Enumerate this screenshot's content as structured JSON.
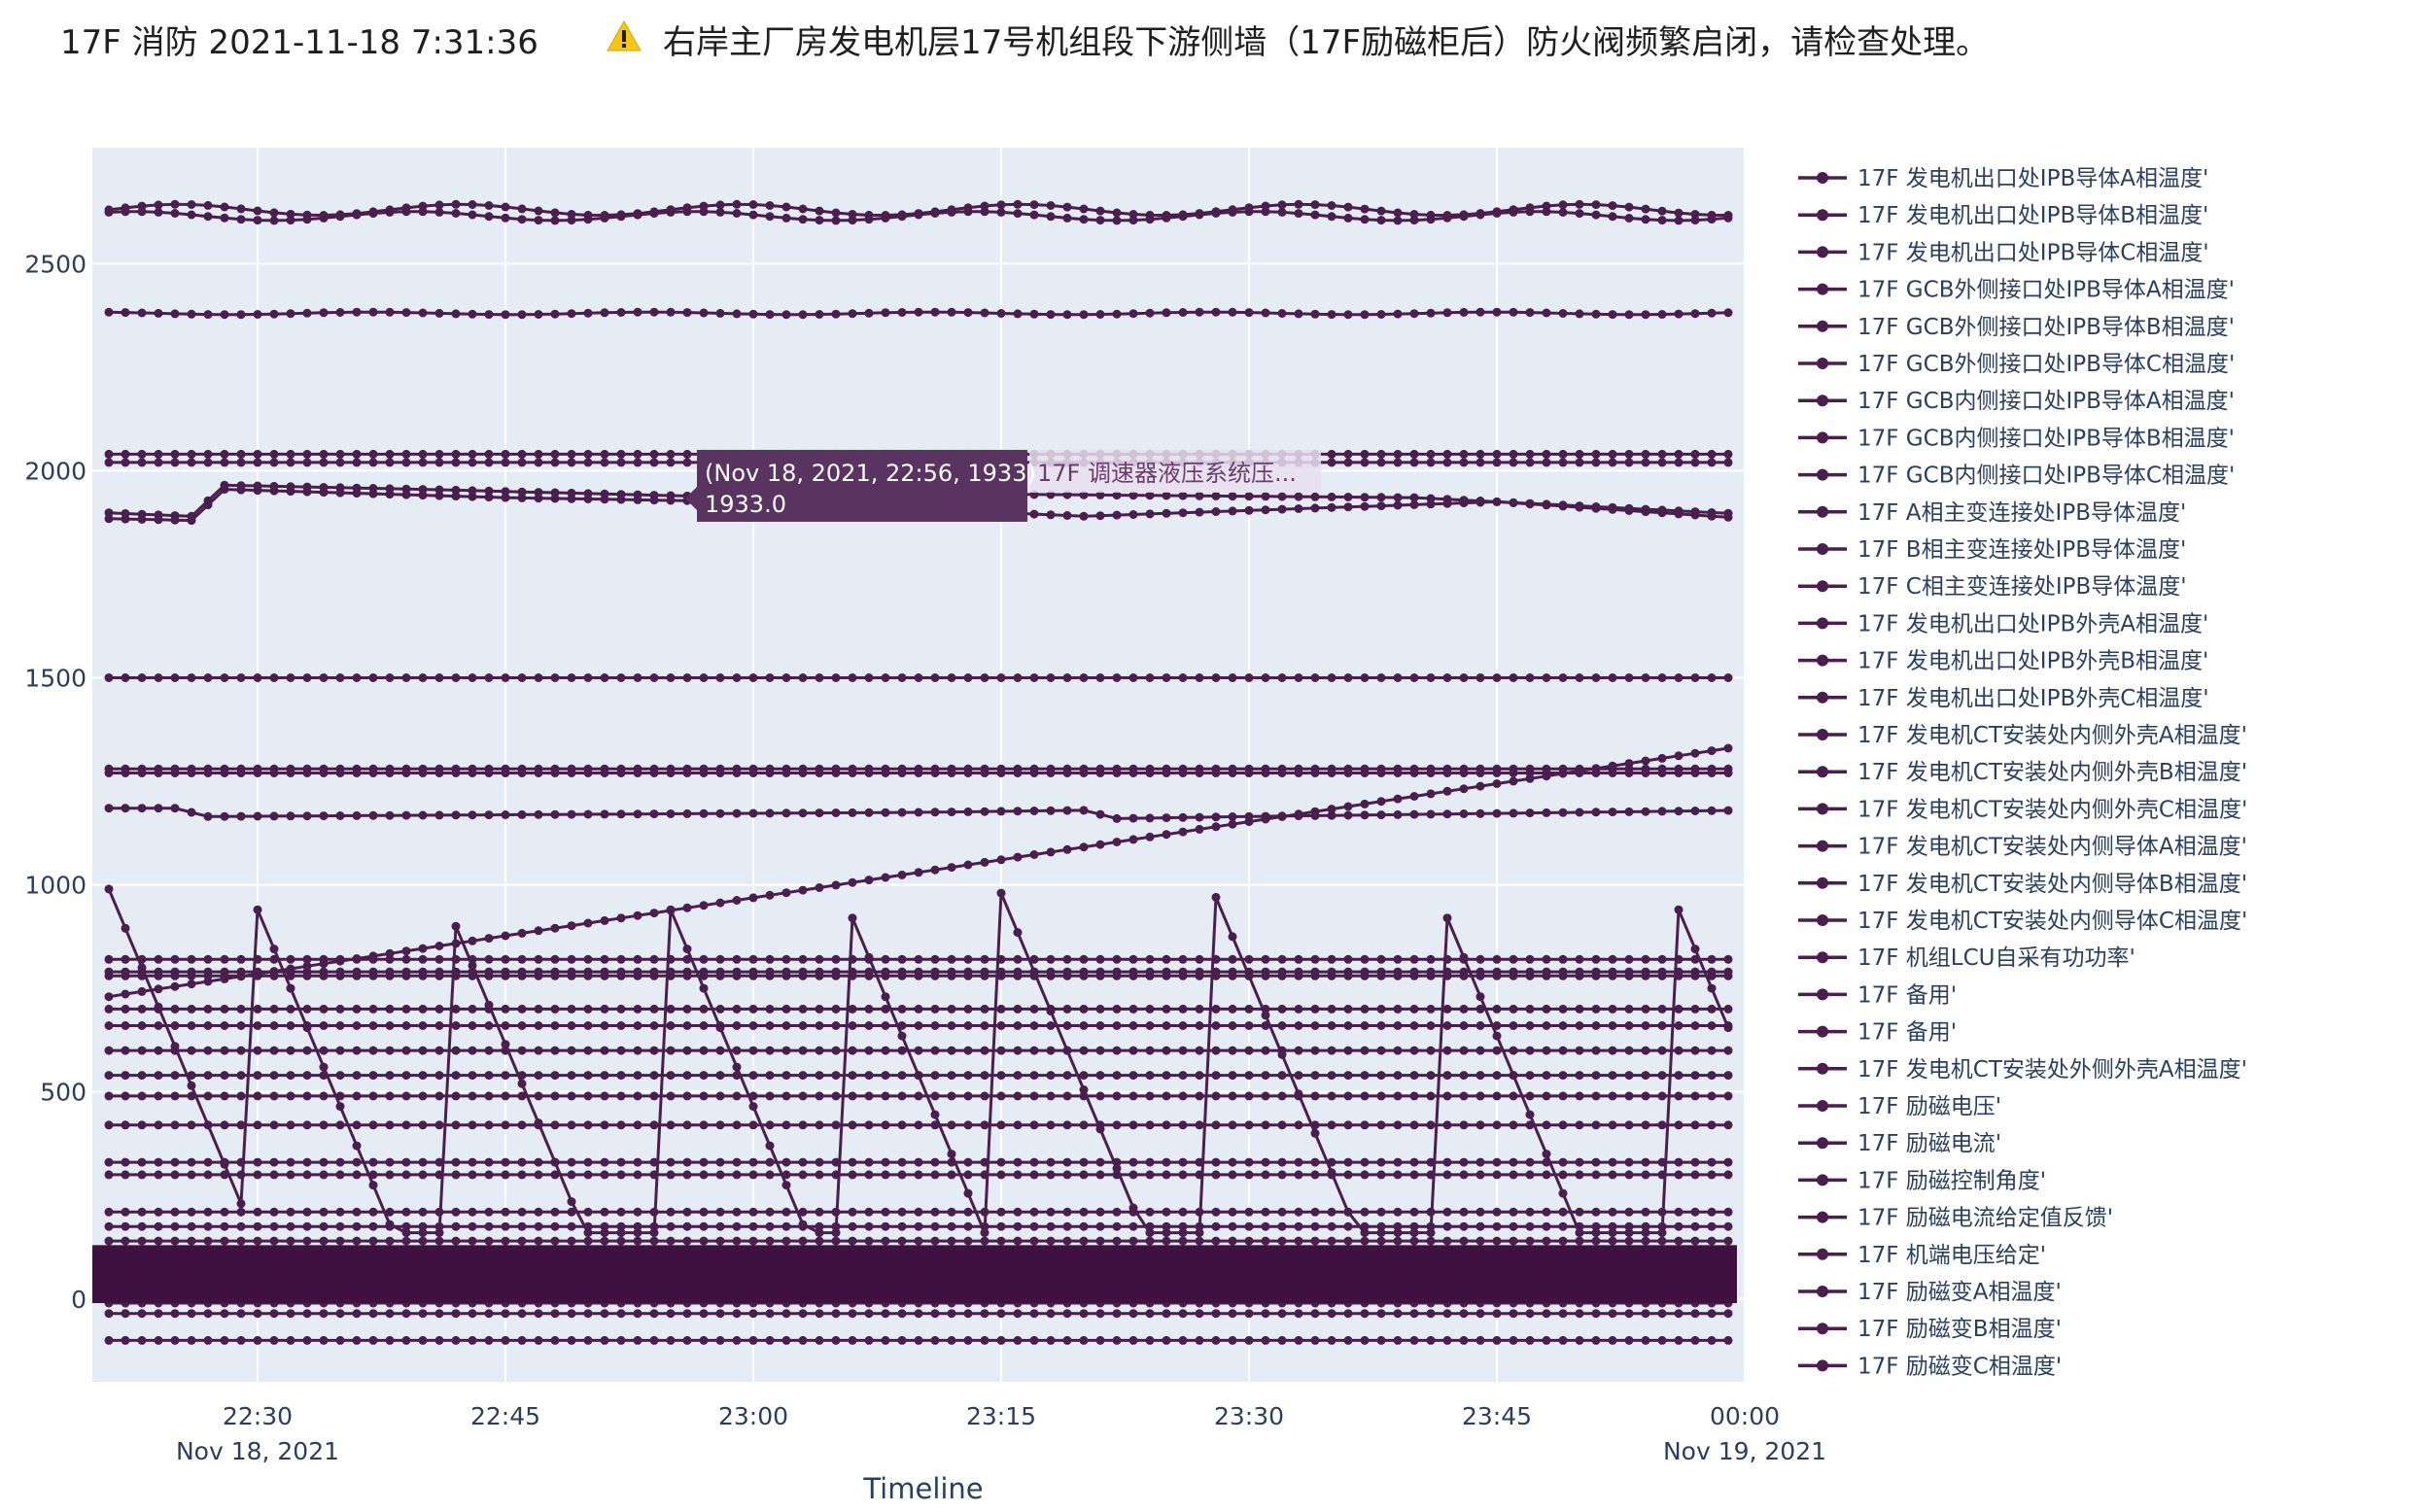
{
  "header": {
    "title": "17F 消防 2021-11-18 7:31:36",
    "warning_icon": "warning-triangle-icon",
    "message": "右岸主厂房发电机层17号机组段下游侧墙（17F励磁柜后）防火阀频繁启闭，请检查处理。"
  },
  "colors": {
    "plot_bg": "#e5ecf6",
    "grid": "#ffffff",
    "series": "#4a1f4e",
    "hover_box": "#5a3460",
    "warning": "#f5c518"
  },
  "chart_data": {
    "type": "line",
    "mode": "lines+markers",
    "xlabel": "Timeline",
    "ylabel": "",
    "xlim": [
      "2021-11-18 22:20",
      "2021-11-19 00:00"
    ],
    "ylim": [
      -200,
      2780
    ],
    "x_ticks": [
      {
        "value": "2021-11-18 22:30",
        "label": "22:30",
        "sublabel": "Nov 18, 2021"
      },
      {
        "value": "2021-11-18 22:45",
        "label": "22:45",
        "sublabel": ""
      },
      {
        "value": "2021-11-18 23:00",
        "label": "23:00",
        "sublabel": ""
      },
      {
        "value": "2021-11-18 23:15",
        "label": "23:15",
        "sublabel": ""
      },
      {
        "value": "2021-11-18 23:30",
        "label": "23:30",
        "sublabel": ""
      },
      {
        "value": "2021-11-18 23:45",
        "label": "23:45",
        "sublabel": ""
      },
      {
        "value": "2021-11-19 00:00",
        "label": "00:00",
        "sublabel": "Nov 19, 2021"
      }
    ],
    "y_ticks": [
      0,
      500,
      1000,
      1500,
      2000,
      2500
    ],
    "grid": true,
    "legend_position": "right",
    "legend": [
      "17F 发电机出口处IPB导体A相温度'",
      "17F 发电机出口处IPB导体B相温度'",
      "17F 发电机出口处IPB导体C相温度'",
      "17F GCB外侧接口处IPB导体A相温度'",
      "17F GCB外侧接口处IPB导体B相温度'",
      "17F GCB外侧接口处IPB导体C相温度'",
      "17F GCB内侧接口处IPB导体A相温度'",
      "17F GCB内侧接口处IPB导体B相温度'",
      "17F GCB内侧接口处IPB导体C相温度'",
      "17F A相主变连接处IPB导体温度'",
      "17F B相主变连接处IPB导体温度'",
      "17F C相主变连接处IPB导体温度'",
      "17F 发电机出口处IPB外壳A相温度'",
      "17F 发电机出口处IPB外壳B相温度'",
      "17F 发电机出口处IPB外壳C相温度'",
      "17F 发电机CT安装处内侧外壳A相温度'",
      "17F 发电机CT安装处内侧外壳B相温度'",
      "17F 发电机CT安装处内侧外壳C相温度'",
      "17F 发电机CT安装处内侧导体A相温度'",
      "17F 发电机CT安装处内侧导体B相温度'",
      "17F 发电机CT安装处内侧导体C相温度'",
      "17F 机组LCU自采有功功率'",
      "17F 备用'",
      "17F 备用'",
      "17F 发电机CT安装处外侧外壳A相温度'",
      "17F 励磁电压'",
      "17F 励磁电流'",
      "17F 励磁控制角度'",
      "17F 励磁电流给定值反馈'",
      "17F 机端电压给定'",
      "17F 励磁变A相温度'",
      "17F 励磁变B相温度'",
      "17F 励磁变C相温度'"
    ],
    "series": [
      {
        "kind": "flat",
        "value": 2630,
        "wobble": 22
      },
      {
        "kind": "flat",
        "value": 2615,
        "wobble": 18
      },
      {
        "kind": "flat",
        "value": 2380,
        "wobble": 5
      },
      {
        "kind": "flat",
        "value": 2040,
        "wobble": 0
      },
      {
        "kind": "flat",
        "value": 2020,
        "wobble": 0
      },
      {
        "kind": "step",
        "points": [
          [
            "2021-11-18 22:20",
            1900
          ],
          [
            "2021-11-18 22:26",
            1890
          ],
          [
            "2021-11-18 22:28",
            1965
          ],
          [
            "2021-11-18 22:40",
            1955
          ],
          [
            "2021-11-18 22:50",
            1945
          ],
          [
            "2021-11-18 23:00",
            1935
          ],
          [
            "2021-11-18 23:10",
            1945
          ],
          [
            "2021-11-18 23:40",
            1935
          ],
          [
            "2021-11-19 00:00",
            1895
          ]
        ]
      },
      {
        "kind": "step",
        "points": [
          [
            "2021-11-18 22:20",
            1885
          ],
          [
            "2021-11-18 22:26",
            1880
          ],
          [
            "2021-11-18 22:28",
            1955
          ],
          [
            "2021-11-18 22:45",
            1935
          ],
          [
            "2021-11-18 23:00",
            1925
          ],
          [
            "2021-11-18 23:20",
            1890
          ],
          [
            "2021-11-18 23:45",
            1925
          ],
          [
            "2021-11-19 00:00",
            1885
          ]
        ]
      },
      {
        "kind": "flat",
        "value": 1500,
        "wobble": 0
      },
      {
        "kind": "flat",
        "value": 1280,
        "wobble": 0
      },
      {
        "kind": "flat",
        "value": 1270,
        "wobble": 0
      },
      {
        "kind": "step",
        "points": [
          [
            "2021-11-18 22:20",
            1185
          ],
          [
            "2021-11-18 22:25",
            1185
          ],
          [
            "2021-11-18 22:27",
            1165
          ],
          [
            "2021-11-18 23:10",
            1175
          ],
          [
            "2021-11-18 23:20",
            1180
          ],
          [
            "2021-11-18 23:22",
            1160
          ],
          [
            "2021-11-18 23:30",
            1165
          ],
          [
            "2021-11-19 00:00",
            1180
          ]
        ]
      },
      {
        "kind": "ramp",
        "from": 730,
        "to": 1330
      },
      {
        "kind": "flat",
        "value": 820,
        "wobble": 0
      },
      {
        "kind": "flat",
        "value": 790,
        "wobble": 0
      },
      {
        "kind": "flat",
        "value": 780,
        "wobble": 0
      },
      {
        "kind": "flat",
        "value": 700,
        "wobble": 0
      },
      {
        "kind": "flat",
        "value": 660,
        "wobble": 0
      },
      {
        "kind": "flat",
        "value": 600,
        "wobble": 0
      },
      {
        "kind": "flat",
        "value": 540,
        "wobble": 0
      },
      {
        "kind": "flat",
        "value": 490,
        "wobble": 0
      },
      {
        "kind": "flat",
        "value": 420,
        "wobble": 0
      },
      {
        "kind": "flat",
        "value": 330,
        "wobble": 0
      },
      {
        "kind": "flat",
        "value": 300,
        "wobble": 0
      },
      {
        "kind": "flat",
        "value": 210,
        "wobble": 0
      },
      {
        "kind": "flat",
        "value": 175,
        "wobble": 0
      },
      {
        "kind": "flat",
        "value": 140,
        "wobble": 0
      },
      {
        "kind": "flat",
        "value": 110,
        "wobble": 0
      },
      {
        "kind": "flat",
        "value": 80,
        "wobble": 0
      },
      {
        "kind": "flat",
        "value": 50,
        "wobble": 0
      },
      {
        "kind": "flat",
        "value": 20,
        "wobble": 0
      },
      {
        "kind": "flat",
        "value": -10,
        "wobble": 0
      },
      {
        "kind": "flat",
        "value": -35,
        "wobble": 0
      },
      {
        "kind": "flat",
        "value": -100,
        "wobble": 0
      },
      {
        "kind": "sawtooth",
        "peaks": [
          [
            "2021-11-18 22:21",
            990
          ],
          [
            "2021-11-18 22:30",
            940
          ],
          [
            "2021-11-18 22:42",
            900
          ],
          [
            "2021-11-18 22:55",
            940
          ],
          [
            "2021-11-18 23:06",
            920
          ],
          [
            "2021-11-18 23:15",
            980
          ],
          [
            "2021-11-18 23:28",
            970
          ],
          [
            "2021-11-18 23:42",
            920
          ],
          [
            "2021-11-18 23:56",
            940
          ]
        ],
        "trough": 160
      }
    ],
    "hover": {
      "x": "2021-11-18 22:56",
      "y": 1933,
      "label_line1": "(Nov 18, 2021, 22:56, 1933)",
      "label_line2": "1933.0",
      "series_name": "17F 调速器液压系统压..."
    }
  }
}
